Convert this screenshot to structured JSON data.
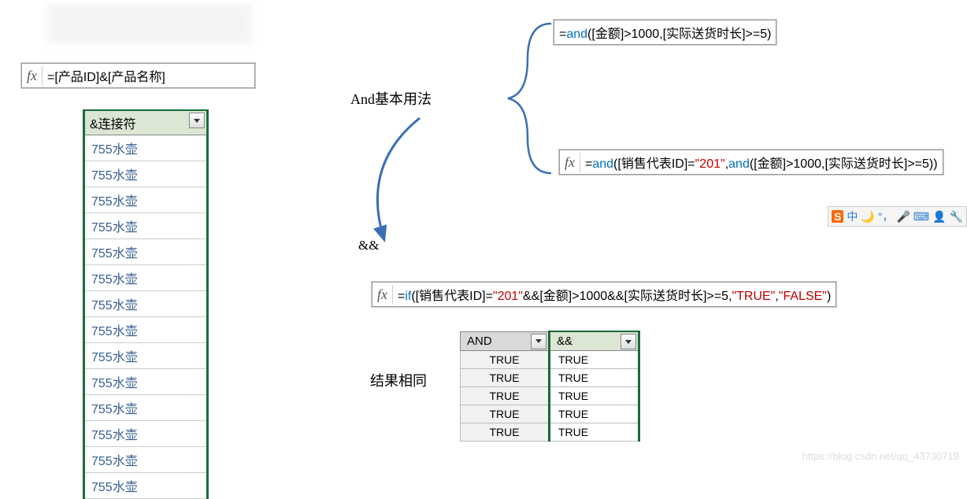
{
  "formula_left": {
    "full": "=[产品ID]&[产品名称]"
  },
  "left_column": {
    "header": "&连接符",
    "rows": [
      "755水壶",
      "755水壶",
      "755水壶",
      "755水壶",
      "755水壶",
      "755水壶",
      "755水壶",
      "755水壶",
      "755水壶",
      "755水壶",
      "755水壶",
      "755水壶",
      "755水壶",
      "755水壶"
    ]
  },
  "annot_and": "And基本用法",
  "annot_amp": "&&",
  "annot_same": "结果相同",
  "formula_top": {
    "prefix": "=",
    "fn": "and",
    "rest": "([金额]>1000,[实际送货时长]>=5)"
  },
  "formula_mid": {
    "prefix": "=",
    "fn1": "and",
    "seg1": "([销售代表ID]=",
    "str1": "\"201\"",
    "seg2": ",",
    "fn2": "and",
    "seg3": "([金额]>1000,[实际送货时长]>=5))"
  },
  "formula_if": {
    "prefix": "=",
    "fn": "if",
    "seg1": "([销售代表ID]=",
    "str1": "\"201\"",
    "seg2": "&&[金额]>1000&&[实际送货时长]>=5,",
    "str2": "\"TRUE\"",
    "seg3": ",",
    "str3": "\"FALSE\"",
    "seg4": ")"
  },
  "result_table": {
    "columns": [
      "AND",
      "&&"
    ],
    "rows": [
      [
        "TRUE",
        "TRUE"
      ],
      [
        "TRUE",
        "TRUE"
      ],
      [
        "TRUE",
        "TRUE"
      ],
      [
        "TRUE",
        "TRUE"
      ],
      [
        "TRUE",
        "TRUE"
      ]
    ]
  },
  "ime": {
    "logo": "S",
    "items": [
      "中",
      "",
      "",
      "",
      "",
      ""
    ]
  },
  "watermark": "https://blog.csdn.net/qq_43730719",
  "colors": {
    "fn_color": "#0070c0",
    "str_color": "#c00000",
    "table_border": "#1a6b3a",
    "header_bg": "#dbe6d4",
    "cell_text": "#365f91",
    "brace_color": "#3a6fb7"
  }
}
